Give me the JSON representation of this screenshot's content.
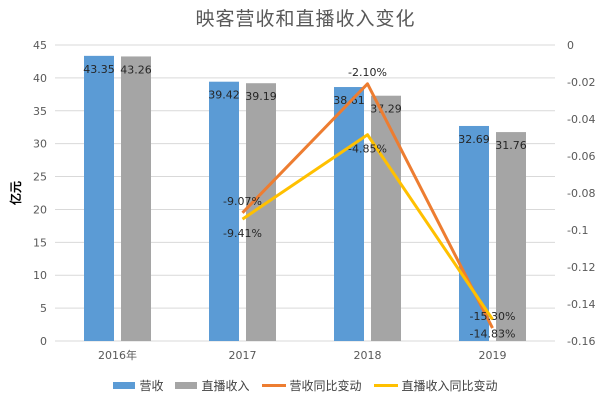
{
  "chart_data": {
    "type": "bar",
    "title": "映客营收和直播收入变化",
    "ylabel": "亿元",
    "categories": [
      "2016年",
      "2017",
      "2018",
      "2019"
    ],
    "ylim": [
      0,
      45
    ],
    "y_ticks": [
      "0",
      "5",
      "10",
      "15",
      "20",
      "25",
      "30",
      "35",
      "40",
      "45"
    ],
    "y2lim": [
      -0.16,
      0
    ],
    "y2_ticks": [
      "0",
      "-0.02",
      "-0.04",
      "-0.06",
      "-0.08",
      "-0.1",
      "-0.12",
      "-0.14",
      "-0.16"
    ],
    "grid": true,
    "legend_position": "bottom",
    "series": [
      {
        "name": "营收",
        "kind": "bar",
        "axis": "left",
        "color": "#5b9bd5",
        "values": [
          43.35,
          39.42,
          38.61,
          32.69
        ],
        "labels": [
          "43.35",
          "39.42",
          "38.61",
          "32.69"
        ]
      },
      {
        "name": "直播收入",
        "kind": "bar",
        "axis": "left",
        "color": "#a5a5a5",
        "values": [
          43.26,
          39.19,
          37.29,
          31.76
        ],
        "labels": [
          "43.26",
          "39.19",
          "37.29",
          "31.76"
        ]
      },
      {
        "name": "营收同比变动",
        "kind": "line",
        "axis": "right",
        "color": "#ed7d31",
        "values": [
          null,
          -0.0907,
          -0.021,
          -0.153
        ],
        "labels": [
          "",
          "-9.07%",
          "-2.10%",
          "-15.30%"
        ]
      },
      {
        "name": "直播收入同比变动",
        "kind": "line",
        "axis": "right",
        "color": "#ffc000",
        "values": [
          null,
          -0.0941,
          -0.0485,
          -0.1483
        ],
        "labels": [
          "",
          "-9.41%",
          "-4.85%",
          "-14.83%"
        ]
      }
    ]
  }
}
